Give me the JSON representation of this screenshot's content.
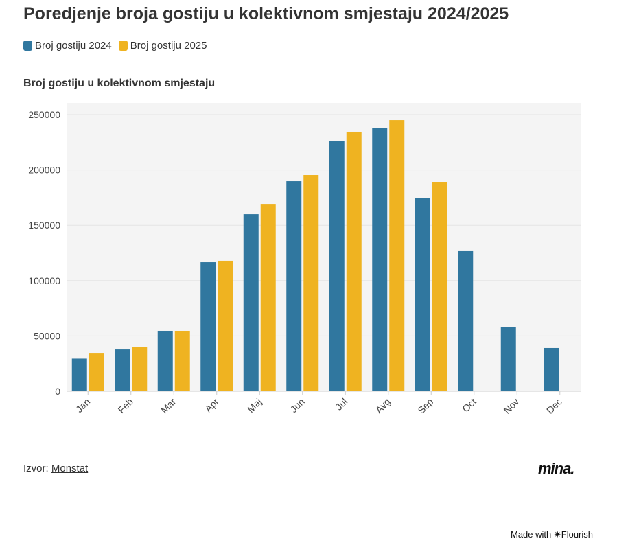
{
  "title": "Poredjenje broja gostiju u kolektivnom smjestaju 2024/2025",
  "source_label": "Izvor:",
  "source_link": "Monstat",
  "logo": "mina.",
  "made_with": "Made with ✷Flourish",
  "chart_data": {
    "type": "bar",
    "subtitle": "Broj gostiju u kolektivnom smjestaju",
    "categories": [
      "Jan",
      "Feb",
      "Mar",
      "Apr",
      "Maj",
      "Jun",
      "Jul",
      "Avg",
      "Sep",
      "Oct",
      "Nov",
      "Dec"
    ],
    "series": [
      {
        "name": "Broj gostiju 2024",
        "color": "#30779f",
        "values": [
          29500,
          37800,
          54600,
          116600,
          160000,
          189800,
          226400,
          238200,
          174900,
          127200,
          57700,
          39100
        ]
      },
      {
        "name": "Broj gostiju 2025",
        "color": "#efb321",
        "values": [
          34700,
          39700,
          54600,
          117900,
          169300,
          195400,
          234500,
          245000,
          189200,
          null,
          null,
          null
        ]
      }
    ],
    "ylim": [
      0,
      260000
    ],
    "yticks": [
      0,
      50000,
      100000,
      150000,
      200000,
      250000
    ],
    "grid": true,
    "legend": "top-left"
  }
}
